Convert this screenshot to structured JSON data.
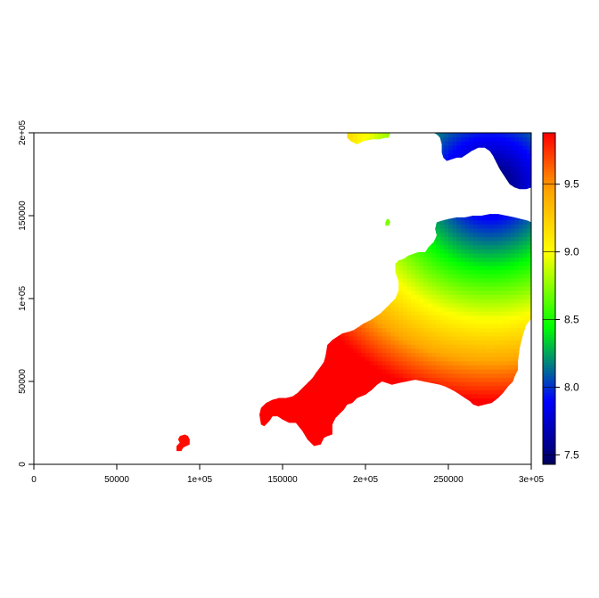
{
  "chart_data": {
    "type": "heatmap",
    "title": "",
    "xlabel": "",
    "ylabel": "",
    "xlim": [
      0,
      300000
    ],
    "ylim": [
      0,
      200000
    ],
    "x_ticks": [
      {
        "value": 0,
        "label": "0"
      },
      {
        "value": 50000,
        "label": "50000"
      },
      {
        "value": 100000,
        "label": "1e+05"
      },
      {
        "value": 150000,
        "label": "150000"
      },
      {
        "value": 200000,
        "label": "2e+05"
      },
      {
        "value": 250000,
        "label": "250000"
      },
      {
        "value": 300000,
        "label": "3e+05"
      }
    ],
    "y_ticks": [
      {
        "value": 0,
        "label": "0"
      },
      {
        "value": 50000,
        "label": "50000"
      },
      {
        "value": 100000,
        "label": "1e+05"
      },
      {
        "value": 150000,
        "label": "150000"
      },
      {
        "value": 200000,
        "label": "2e+05"
      }
    ],
    "legend": {
      "placement": "right",
      "range": [
        7.43,
        9.88
      ],
      "ticks": [
        {
          "value": 7.5,
          "label": "7.5"
        },
        {
          "value": 8.0,
          "label": "8.0"
        },
        {
          "value": 8.5,
          "label": "8.5"
        },
        {
          "value": 9.0,
          "label": "9.0"
        },
        {
          "value": 9.5,
          "label": "9.5"
        }
      ],
      "colors": [
        "#00005e",
        "#0000ff",
        "#00ff00",
        "#ffff00",
        "#ffa500",
        "#ff0000"
      ],
      "color_stops": [
        7.43,
        7.9,
        8.45,
        9.0,
        9.45,
        9.88
      ]
    },
    "regions": [
      {
        "name": "mainland",
        "polygon": [
          [
            137000,
            24000
          ],
          [
            139000,
            23000
          ],
          [
            142000,
            26000
          ],
          [
            144000,
            29000
          ],
          [
            147000,
            29000
          ],
          [
            150000,
            27000
          ],
          [
            154000,
            25000
          ],
          [
            158000,
            25000
          ],
          [
            162000,
            20000
          ],
          [
            165000,
            15000
          ],
          [
            169000,
            11000
          ],
          [
            173000,
            12000
          ],
          [
            175000,
            16000
          ],
          [
            177000,
            17000
          ],
          [
            180000,
            18000
          ],
          [
            180000,
            24000
          ],
          [
            182000,
            28000
          ],
          [
            185000,
            31000
          ],
          [
            187000,
            33000
          ],
          [
            189000,
            36000
          ],
          [
            192000,
            37000
          ],
          [
            195000,
            40000
          ],
          [
            200000,
            42000
          ],
          [
            204000,
            45000
          ],
          [
            207000,
            48000
          ],
          [
            210000,
            50000
          ],
          [
            213000,
            49000
          ],
          [
            216000,
            48000
          ],
          [
            220000,
            49000
          ],
          [
            225000,
            50000
          ],
          [
            230000,
            51000
          ],
          [
            235000,
            50000
          ],
          [
            240000,
            49000
          ],
          [
            245000,
            48000
          ],
          [
            248000,
            47000
          ],
          [
            250000,
            46000
          ],
          [
            254000,
            44000
          ],
          [
            257000,
            42000
          ],
          [
            260000,
            40000
          ],
          [
            263000,
            38000
          ],
          [
            265000,
            36000
          ],
          [
            268000,
            35000
          ],
          [
            272000,
            36000
          ],
          [
            276000,
            37000
          ],
          [
            280000,
            40000
          ],
          [
            283000,
            43000
          ],
          [
            286000,
            47000
          ],
          [
            289000,
            50000
          ],
          [
            290000,
            53000
          ],
          [
            292000,
            57000
          ],
          [
            292000,
            62000
          ],
          [
            293000,
            70000
          ],
          [
            295000,
            78000
          ],
          [
            297000,
            84000
          ],
          [
            300000,
            88000
          ],
          [
            300000,
            146000
          ],
          [
            298000,
            147000
          ],
          [
            294000,
            148000
          ],
          [
            290000,
            149000
          ],
          [
            285000,
            150000
          ],
          [
            280000,
            151000
          ],
          [
            275000,
            151000
          ],
          [
            270000,
            150000
          ],
          [
            265000,
            150000
          ],
          [
            260000,
            149000
          ],
          [
            255000,
            149000
          ],
          [
            250000,
            148000
          ],
          [
            246000,
            147000
          ],
          [
            243000,
            146000
          ],
          [
            242000,
            142000
          ],
          [
            243000,
            138000
          ],
          [
            241000,
            134000
          ],
          [
            238000,
            131000
          ],
          [
            236000,
            128000
          ],
          [
            232000,
            128000
          ],
          [
            229000,
            127000
          ],
          [
            226000,
            126000
          ],
          [
            223000,
            124000
          ],
          [
            220000,
            123000
          ],
          [
            218000,
            121000
          ],
          [
            218000,
            116000
          ],
          [
            220000,
            110000
          ],
          [
            220000,
            105000
          ],
          [
            218000,
            100000
          ],
          [
            215000,
            97000
          ],
          [
            212000,
            94000
          ],
          [
            209000,
            91000
          ],
          [
            206000,
            89000
          ],
          [
            203000,
            87000
          ],
          [
            199000,
            85000
          ],
          [
            196000,
            83000
          ],
          [
            193000,
            81000
          ],
          [
            190000,
            80000
          ],
          [
            186000,
            79000
          ],
          [
            183000,
            77000
          ],
          [
            180000,
            75000
          ],
          [
            177000,
            72000
          ],
          [
            176000,
            66000
          ],
          [
            175000,
            62000
          ],
          [
            173000,
            59000
          ],
          [
            170000,
            55000
          ],
          [
            168000,
            52000
          ],
          [
            165000,
            49000
          ],
          [
            162000,
            46000
          ],
          [
            159000,
            43000
          ],
          [
            156000,
            41000
          ],
          [
            152000,
            40000
          ],
          [
            148000,
            40000
          ],
          [
            144000,
            39000
          ],
          [
            140000,
            37000
          ],
          [
            137000,
            34000
          ],
          [
            136000,
            30000
          ]
        ]
      },
      {
        "name": "wales-north",
        "polygon": [
          [
            189000,
            200000
          ],
          [
            215000,
            200000
          ],
          [
            214000,
            197000
          ],
          [
            212000,
            197000
          ],
          [
            208000,
            196000
          ],
          [
            204000,
            196000
          ],
          [
            199000,
            195000
          ],
          [
            195000,
            193000
          ],
          [
            193000,
            194000
          ],
          [
            191000,
            195000
          ],
          [
            189000,
            197000
          ]
        ]
      },
      {
        "name": "wales-south-east",
        "polygon": [
          [
            241000,
            200000
          ],
          [
            300000,
            200000
          ],
          [
            300000,
            167000
          ],
          [
            297000,
            166000
          ],
          [
            293000,
            166000
          ],
          [
            290000,
            167000
          ],
          [
            287000,
            169000
          ],
          [
            285000,
            172000
          ],
          [
            283000,
            175000
          ],
          [
            281000,
            178000
          ],
          [
            279000,
            182000
          ],
          [
            277000,
            186000
          ],
          [
            275000,
            189000
          ],
          [
            272000,
            191000
          ],
          [
            268000,
            191000
          ],
          [
            264000,
            189000
          ],
          [
            261000,
            187000
          ],
          [
            258000,
            185000
          ],
          [
            255000,
            185000
          ],
          [
            252000,
            184000
          ],
          [
            249000,
            183000
          ],
          [
            247000,
            185000
          ],
          [
            246000,
            188000
          ],
          [
            246000,
            193000
          ],
          [
            245000,
            197000
          ],
          [
            243000,
            199000
          ]
        ]
      },
      {
        "name": "lundy",
        "polygon": [
          [
            212000,
            144000
          ],
          [
            214000,
            144000
          ],
          [
            215000,
            146000
          ],
          [
            214000,
            148000
          ],
          [
            213000,
            148000
          ],
          [
            212000,
            146000
          ]
        ]
      },
      {
        "name": "scilly",
        "polygon": [
          [
            86000,
            8000
          ],
          [
            89000,
            8000
          ],
          [
            90000,
            10000
          ],
          [
            92000,
            11000
          ],
          [
            94000,
            12000
          ],
          [
            94000,
            15000
          ],
          [
            93000,
            17000
          ],
          [
            91000,
            18000
          ],
          [
            88000,
            17000
          ],
          [
            87000,
            15000
          ],
          [
            88000,
            13000
          ],
          [
            86000,
            11000
          ]
        ]
      }
    ]
  }
}
